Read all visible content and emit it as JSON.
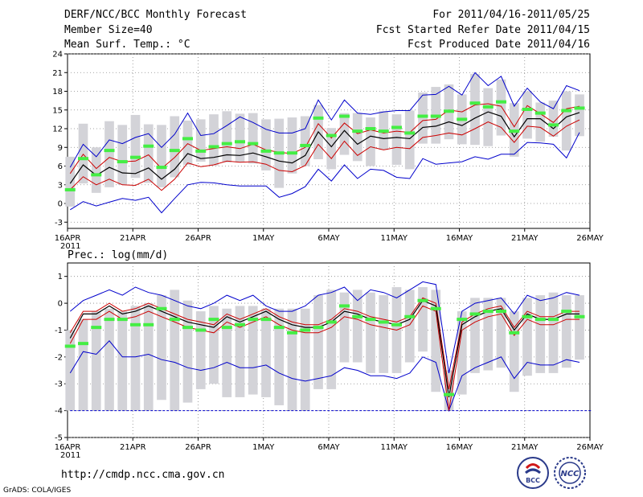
{
  "header": {
    "title": "DERF/NCC/BCC Monthly Forecast",
    "member_size": "Member Size=40",
    "variable": "Mean Surf. Temp.: °C",
    "period": "For 2011/04/16-2011/05/25",
    "started": "Fcst Started Refer Date 2011/04/15",
    "produced": "Fcst Produced Date 2011/04/16"
  },
  "footer": {
    "url": "http://cmdp.ncc.cma.gov.cn",
    "grads": "GrADS: COLA/IGES",
    "logo_left_text": "BCC",
    "logo_right_text": "NCC"
  },
  "colors": {
    "mean": "#000000",
    "sd": "#cc0000",
    "extreme": "#0000cc",
    "box": "#d3d3d8",
    "obs": "#44ee44",
    "grid": "#888888"
  },
  "chart_data": [
    {
      "type": "line",
      "title": "Mean Surf. Temp.: °C",
      "x_tick_labels": [
        "16APR",
        "21APR",
        "26APR",
        "1MAY",
        "6MAY",
        "11MAY",
        "16MAY",
        "21MAY",
        "26MAY"
      ],
      "x_year_label": "2011",
      "ylim": [
        -4,
        24
      ],
      "y_ticks": [
        -3,
        0,
        3,
        6,
        9,
        12,
        15,
        18,
        21,
        24
      ],
      "days": 40,
      "series": [
        {
          "name": "mean",
          "values": [
            3.2,
            6.2,
            4.5,
            5.8,
            4.9,
            4.8,
            5.7,
            3.9,
            5.5,
            8.0,
            7.2,
            7.4,
            7.8,
            7.7,
            8.1,
            7.5,
            6.8,
            6.5,
            7.7,
            11.5,
            9.1,
            11.7,
            9.5,
            10.8,
            10.4,
            10.6,
            10.4,
            12.2,
            12.4,
            13.1,
            12.5,
            13.7,
            14.7,
            14.0,
            10.7,
            13.6,
            13.6,
            12.0,
            13.9,
            14.6,
            13.4
          ]
        },
        {
          "name": "upper_sd",
          "values": [
            4.8,
            7.9,
            5.6,
            7.4,
            6.7,
            6.8,
            7.8,
            5.6,
            7.4,
            9.6,
            8.5,
            8.8,
            9.1,
            8.8,
            9.5,
            8.6,
            8.2,
            8.0,
            9.0,
            12.8,
            10.5,
            12.9,
            11.2,
            11.8,
            11.3,
            11.6,
            11.4,
            13.3,
            13.5,
            15.0,
            14.7,
            15.8,
            16.0,
            15.6,
            12.3,
            15.7,
            14.4,
            13.0,
            15.2,
            15.6,
            14.8
          ]
        },
        {
          "name": "lower_sd",
          "values": [
            2.2,
            4.3,
            3.0,
            3.9,
            3.0,
            2.9,
            3.9,
            2.1,
            3.9,
            6.5,
            5.9,
            6.2,
            6.8,
            6.6,
            6.7,
            6.3,
            5.3,
            5.1,
            6.1,
            9.5,
            7.2,
            10.0,
            7.7,
            9.1,
            8.6,
            9.0,
            8.8,
            10.6,
            10.9,
            11.3,
            11.0,
            12.0,
            13.1,
            12.2,
            9.8,
            12.4,
            12.2,
            10.8,
            12.4,
            13.4,
            12.0
          ]
        },
        {
          "name": "max",
          "values": [
            5.8,
            9.5,
            7.5,
            10.2,
            9.6,
            10.6,
            11.2,
            9.0,
            11.1,
            14.5,
            10.9,
            11.2,
            12.5,
            13.9,
            13.0,
            11.9,
            11.3,
            11.3,
            12.0,
            16.6,
            13.4,
            16.6,
            14.5,
            14.3,
            14.7,
            14.9,
            14.9,
            17.4,
            17.5,
            18.8,
            17.4,
            21.0,
            18.9,
            20.4,
            15.6,
            18.5,
            16.3,
            15.2,
            18.9,
            18.1,
            17.9
          ]
        },
        {
          "name": "min",
          "values": [
            -1.0,
            0.3,
            -0.4,
            0.2,
            0.8,
            0.5,
            1.0,
            -1.5,
            0.8,
            3.0,
            3.4,
            3.3,
            3.0,
            2.8,
            2.8,
            2.8,
            1.0,
            1.6,
            2.7,
            5.5,
            3.6,
            6.2,
            4.0,
            5.5,
            5.3,
            4.2,
            4.0,
            7.2,
            6.3,
            6.5,
            6.7,
            7.5,
            7.1,
            7.9,
            7.9,
            9.8,
            9.7,
            9.5,
            7.3,
            11.4,
            9.4
          ]
        },
        {
          "name": "observed",
          "values": [
            2.2,
            7.2,
            4.6,
            8.5,
            6.7,
            7.4,
            9.2,
            5.8,
            8.5,
            10.4,
            8.4,
            9.1,
            9.6,
            9.9,
            9.6,
            8.4,
            8.1,
            8.1,
            9.3,
            13.7,
            10.9,
            14.0,
            11.6,
            12.0,
            11.6,
            12.2,
            11.3,
            14.0,
            14.0,
            14.8,
            13.5,
            16.1,
            15.5,
            16.3,
            11.6,
            15.1,
            14.5,
            12.6,
            14.9,
            15.3,
            14.9
          ]
        },
        {
          "name": "box_top",
          "values": [
            7.5,
            12.8,
            9.0,
            13.2,
            12.6,
            14.2,
            12.7,
            12.6,
            14.0,
            13.3,
            13.5,
            14.3,
            14.8,
            14.4,
            14.5,
            13.5,
            13.6,
            13.8,
            14.0,
            15.8,
            12.1,
            14.5,
            14.5,
            13.8,
            14.8,
            14.3,
            14.9,
            17.8,
            18.7,
            19.1,
            17.5,
            20.8,
            18.5,
            19.9,
            16.1,
            18.0,
            16.2,
            16.5,
            18.0,
            17.5,
            18.8
          ]
        },
        {
          "name": "box_bottom",
          "values": [
            -0.5,
            3.2,
            1.7,
            2.6,
            3.0,
            4.1,
            3.3,
            2.6,
            4.2,
            6.2,
            6.7,
            6.1,
            6.6,
            6.6,
            6.4,
            5.3,
            2.5,
            4.8,
            6.0,
            7.1,
            5.5,
            7.8,
            6.8,
            6.0,
            8.6,
            6.2,
            5.5,
            9.6,
            9.6,
            10.3,
            9.5,
            9.4,
            9.2,
            10.9,
            7.5,
            10.4,
            9.9,
            10.7,
            8.5,
            10.8,
            10.8
          ]
        }
      ]
    },
    {
      "type": "line",
      "title": "Prec.: log(mm/d)",
      "x_tick_labels": [
        "16APR",
        "21APR",
        "26APR",
        "1MAY",
        "6MAY",
        "11MAY",
        "16MAY",
        "21MAY",
        "26MAY"
      ],
      "x_year_label": "2011",
      "ylim": [
        -5,
        1.5
      ],
      "y_ticks": [
        -5,
        -4,
        -3,
        -2,
        -1,
        0,
        1
      ],
      "days": 40,
      "series": [
        {
          "name": "mean",
          "values": [
            -1.3,
            -0.4,
            -0.4,
            -0.1,
            -0.4,
            -0.3,
            -0.1,
            -0.3,
            -0.5,
            -0.7,
            -0.8,
            -0.9,
            -0.5,
            -0.7,
            -0.5,
            -0.3,
            -0.6,
            -0.8,
            -0.9,
            -0.9,
            -0.7,
            -0.3,
            -0.4,
            -0.6,
            -0.7,
            -0.8,
            -0.6,
            0.1,
            -0.1,
            -3.5,
            -0.8,
            -0.5,
            -0.3,
            -0.2,
            -1.0,
            -0.4,
            -0.6,
            -0.6,
            -0.4,
            -0.4,
            -0.5,
            -0.5,
            -0.1,
            0.2
          ]
        },
        {
          "name": "upper_sd",
          "values": [
            -1.1,
            -0.3,
            -0.3,
            0.0,
            -0.3,
            -0.2,
            0.0,
            -0.2,
            -0.4,
            -0.6,
            -0.7,
            -0.8,
            -0.4,
            -0.6,
            -0.4,
            -0.2,
            -0.5,
            -0.7,
            -0.8,
            -0.8,
            -0.6,
            -0.2,
            -0.3,
            -0.5,
            -0.6,
            -0.7,
            -0.5,
            0.2,
            0.0,
            -3.2,
            -0.7,
            -0.4,
            -0.2,
            -0.1,
            -0.9,
            -0.3,
            -0.5,
            -0.5,
            -0.3,
            -0.3,
            -0.4,
            -0.4,
            0.0,
            0.3
          ]
        },
        {
          "name": "lower_sd",
          "values": [
            -1.5,
            -0.6,
            -0.6,
            -0.3,
            -0.6,
            -0.5,
            -0.3,
            -0.5,
            -0.7,
            -0.9,
            -1.0,
            -1.1,
            -0.7,
            -0.9,
            -0.7,
            -0.5,
            -0.8,
            -1.0,
            -1.1,
            -1.1,
            -0.9,
            -0.5,
            -0.6,
            -0.8,
            -0.9,
            -1.0,
            -0.8,
            -0.1,
            -0.3,
            -4.0,
            -1.0,
            -0.7,
            -0.5,
            -0.4,
            -1.2,
            -0.6,
            -0.8,
            -0.8,
            -0.6,
            -0.6,
            -0.7,
            -0.7,
            -0.3,
            0.0
          ]
        },
        {
          "name": "max",
          "values": [
            -0.3,
            0.1,
            0.3,
            0.5,
            0.3,
            0.6,
            0.4,
            0.3,
            0.1,
            -0.1,
            -0.2,
            0.0,
            0.3,
            0.1,
            0.3,
            -0.1,
            -0.3,
            -0.3,
            -0.1,
            0.3,
            0.4,
            0.6,
            0.1,
            0.5,
            0.4,
            0.2,
            0.5,
            0.8,
            0.7,
            -2.6,
            -0.3,
            0.0,
            0.1,
            0.2,
            -0.4,
            0.3,
            0.1,
            0.2,
            0.4,
            0.3,
            0.2,
            0.4,
            0.7,
            0.9
          ]
        },
        {
          "name": "min",
          "values": [
            -2.6,
            -1.8,
            -1.9,
            -1.4,
            -2.0,
            -2.0,
            -1.9,
            -2.1,
            -2.2,
            -2.4,
            -2.5,
            -2.4,
            -2.2,
            -2.4,
            -2.4,
            -2.3,
            -2.6,
            -2.8,
            -2.9,
            -2.8,
            -2.7,
            -2.4,
            -2.5,
            -2.7,
            -2.7,
            -2.8,
            -2.6,
            -2.0,
            -2.2,
            -4.0,
            -2.7,
            -2.4,
            -2.2,
            -2.0,
            -2.8,
            -2.2,
            -2.3,
            -2.3,
            -2.1,
            -2.2,
            -2.2,
            -2.1,
            -1.6,
            -1.3
          ]
        },
        {
          "name": "floor",
          "values": [
            -4.0
          ]
        },
        {
          "name": "observed",
          "values": [
            -1.6,
            -1.5,
            -0.9,
            -0.6,
            -0.6,
            -0.8,
            -0.8,
            -0.2,
            -0.6,
            -0.9,
            -1.0,
            -0.6,
            -0.9,
            -0.8,
            -0.6,
            -0.6,
            -0.9,
            -1.1,
            -1.0,
            -0.9,
            -0.7,
            -0.1,
            -0.5,
            -0.6,
            -0.7,
            -0.8,
            -0.5,
            0.1,
            -0.2,
            -3.4,
            -0.6,
            -0.4,
            -0.3,
            -0.3,
            -1.1,
            -0.5,
            -0.6,
            -0.6,
            -0.3,
            -0.5,
            -0.5,
            -0.5,
            0.0,
            0.0
          ]
        },
        {
          "name": "box_top",
          "values": [
            -1.0,
            -0.6,
            -0.3,
            -0.2,
            -0.3,
            -0.1,
            0.0,
            0.3,
            0.5,
            0.1,
            -0.3,
            -0.1,
            -0.2,
            -0.1,
            -0.1,
            -0.2,
            -0.2,
            -0.2,
            -0.2,
            0.3,
            0.5,
            0.4,
            0.5,
            0.4,
            0.3,
            0.6,
            0.5,
            0.6,
            0.5,
            -2.5,
            -0.3,
            0.2,
            0.2,
            0.2,
            -0.3,
            0.2,
            0.3,
            0.4,
            0.3,
            0.3,
            0.2,
            0.5,
            0.5,
            0.5
          ]
        },
        {
          "name": "box_bottom",
          "values": [
            -4.0,
            -4.0,
            -4.0,
            -4.0,
            -4.0,
            -4.0,
            -4.0,
            -3.6,
            -4.0,
            -3.7,
            -3.2,
            -3.0,
            -3.5,
            -3.5,
            -3.4,
            -3.5,
            -3.8,
            -4.0,
            -4.0,
            -3.2,
            -3.2,
            -2.2,
            -2.2,
            -2.6,
            -2.6,
            -2.6,
            -2.2,
            -1.8,
            -3.3,
            -4.0,
            -3.4,
            -2.6,
            -2.5,
            -2.4,
            -3.3,
            -2.7,
            -2.6,
            -2.6,
            -2.4,
            -2.1,
            -2.2,
            -2.3,
            -2.2,
            -1.8
          ]
        }
      ]
    }
  ]
}
